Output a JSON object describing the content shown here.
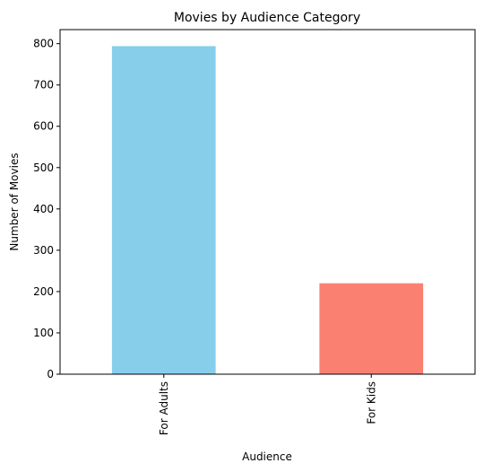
{
  "chart_data": {
    "type": "bar",
    "title": "Movies by Audience Category",
    "xlabel": "Audience",
    "ylabel": "Number of Movies",
    "categories": [
      "For Adults",
      "For Kids"
    ],
    "values": [
      794,
      220
    ],
    "colors": [
      "#87CEEB",
      "#FA8072"
    ],
    "ylim": [
      0,
      834
    ],
    "yticks": [
      0,
      100,
      200,
      300,
      400,
      500,
      600,
      700,
      800
    ],
    "grid": false,
    "legend": "none"
  }
}
